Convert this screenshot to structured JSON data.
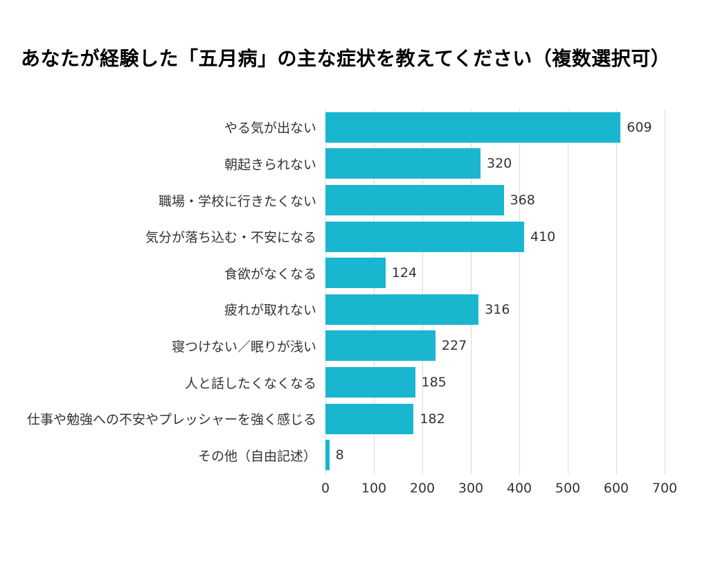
{
  "chart_data": {
    "type": "bar",
    "orientation": "horizontal",
    "title": "あなたが経験した「五月病」の主な症状を教えてください（複数選択可）",
    "categories": [
      "やる気が出ない",
      "朝起きられない",
      "職場・学校に行きたくない",
      "気分が落ち込む・不安になる",
      "食欲がなくなる",
      "疲れが取れない",
      "寝つけない／眠りが浅い",
      "人と話したくなくなる",
      "仕事や勉強への不安やプレッシャーを強く感じる",
      "その他（自由記述）"
    ],
    "values": [
      609,
      320,
      368,
      410,
      124,
      316,
      227,
      185,
      182,
      8
    ],
    "xlabel": "",
    "ylabel": "",
    "xlim": [
      0,
      700
    ],
    "x_ticks": [
      0,
      100,
      200,
      300,
      400,
      500,
      600,
      700
    ],
    "bar_color": "#1ab6d0",
    "grid": true,
    "gridline_color": "#d9d9d9",
    "legend": "none",
    "background_color": "#ffffff",
    "text_color": "#333333"
  }
}
